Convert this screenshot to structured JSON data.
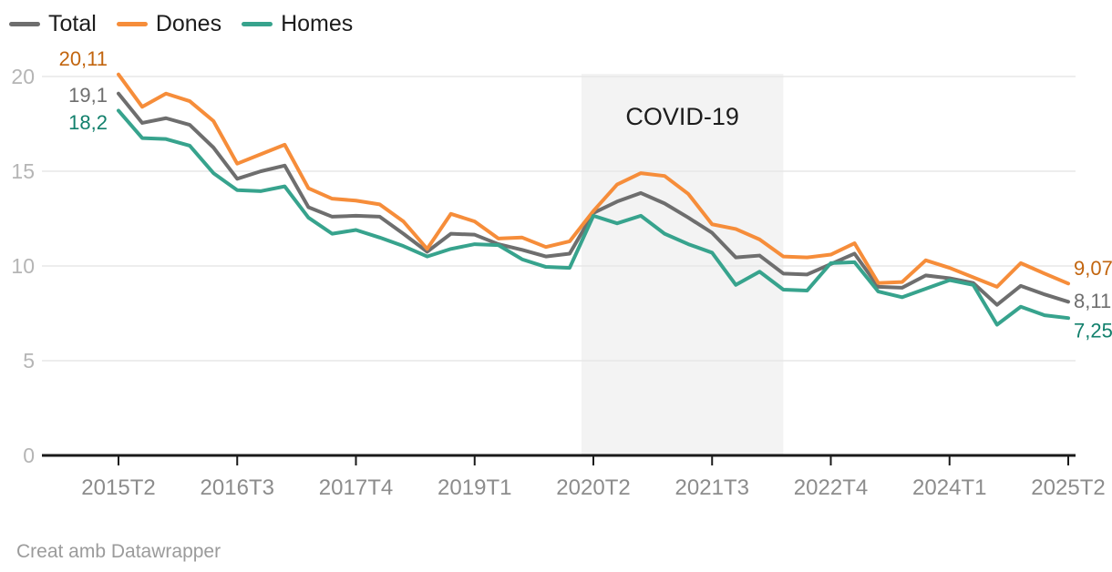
{
  "legend": {
    "items": [
      {
        "label": "Total",
        "color": "#6e6e6e"
      },
      {
        "label": "Dones",
        "color": "#f68d3a"
      },
      {
        "label": "Homes",
        "color": "#37a38d"
      }
    ]
  },
  "footer": {
    "credit": "Creat amb Datawrapper"
  },
  "colors": {
    "band": "#f3f3f3",
    "gridline": "#e7e7e7",
    "axis": "#1a1a1a",
    "x_tick_label": "#8c8c8c",
    "y_tick_label": "#b5b5b5",
    "annotation_text": "#1d1d1d",
    "footer_text": "#9b9b9b"
  },
  "chart_data": {
    "type": "line",
    "title": "",
    "xlabel": "",
    "ylabel": "",
    "ylim": [
      0,
      20
    ],
    "y_ticks": [
      0,
      5,
      10,
      15,
      20
    ],
    "grid": true,
    "legend_position": "top-left",
    "x": [
      "2015T2",
      "2015T3",
      "2015T4",
      "2016T1",
      "2016T2",
      "2016T3",
      "2016T4",
      "2017T1",
      "2017T2",
      "2017T3",
      "2017T4",
      "2018T1",
      "2018T2",
      "2018T3",
      "2018T4",
      "2019T1",
      "2019T2",
      "2019T3",
      "2019T4",
      "2020T1",
      "2020T2",
      "2020T3",
      "2020T4",
      "2021T1",
      "2021T2",
      "2021T3",
      "2021T4",
      "2022T1",
      "2022T2",
      "2022T3",
      "2022T4",
      "2023T1",
      "2023T2",
      "2023T3",
      "2023T4",
      "2024T1",
      "2024T2",
      "2024T3",
      "2024T4",
      "2025T1",
      "2025T2"
    ],
    "x_tick_labels": [
      "2015T2",
      "2016T3",
      "2017T4",
      "2019T1",
      "2020T2",
      "2021T3",
      "2022T4",
      "2024T1",
      "2025T2"
    ],
    "covid_band": {
      "label": "COVID-19",
      "from_quarter": "2020T2",
      "to_quarter": "2022T1"
    },
    "series": [
      {
        "name": "Total",
        "color": "#6e6e6e",
        "label_color": "#6e6e6e",
        "start_label": "19,1",
        "end_label": "8,11",
        "values": [
          19.1,
          17.55,
          17.8,
          17.45,
          16.25,
          14.6,
          15.0,
          15.3,
          13.1,
          12.6,
          12.65,
          12.6,
          11.7,
          10.75,
          11.7,
          11.65,
          11.15,
          10.85,
          10.5,
          10.65,
          12.8,
          13.4,
          13.85,
          13.3,
          12.55,
          11.75,
          10.45,
          10.55,
          9.6,
          9.55,
          10.1,
          10.65,
          8.9,
          8.85,
          9.5,
          9.35,
          9.1,
          7.95,
          8.95,
          8.5,
          8.11
        ]
      },
      {
        "name": "Dones",
        "color": "#f68d3a",
        "label_color": "#c2650f",
        "start_label": "20,11",
        "end_label": "9,07",
        "values": [
          20.11,
          18.4,
          19.1,
          18.7,
          17.65,
          15.4,
          15.9,
          16.4,
          14.1,
          13.55,
          13.45,
          13.25,
          12.35,
          10.9,
          12.75,
          12.35,
          11.45,
          11.5,
          11.0,
          11.3,
          12.9,
          14.3,
          14.9,
          14.75,
          13.8,
          12.2,
          11.95,
          11.4,
          10.5,
          10.45,
          10.6,
          11.2,
          9.1,
          9.15,
          10.3,
          9.9,
          9.4,
          8.9,
          10.15,
          9.6,
          9.07
        ]
      },
      {
        "name": "Homes",
        "color": "#37a38d",
        "label_color": "#12806c",
        "start_label": "18,2",
        "end_label": "7,25",
        "values": [
          18.2,
          16.75,
          16.7,
          16.35,
          14.9,
          14.0,
          13.95,
          14.2,
          12.55,
          11.7,
          11.9,
          11.5,
          11.05,
          10.5,
          10.9,
          11.15,
          11.1,
          10.35,
          9.95,
          9.9,
          12.65,
          12.25,
          12.65,
          11.7,
          11.15,
          10.7,
          9.0,
          9.7,
          8.75,
          8.7,
          10.15,
          10.2,
          8.65,
          8.35,
          8.8,
          9.25,
          9.0,
          6.9,
          7.85,
          7.4,
          7.25
        ]
      }
    ]
  }
}
